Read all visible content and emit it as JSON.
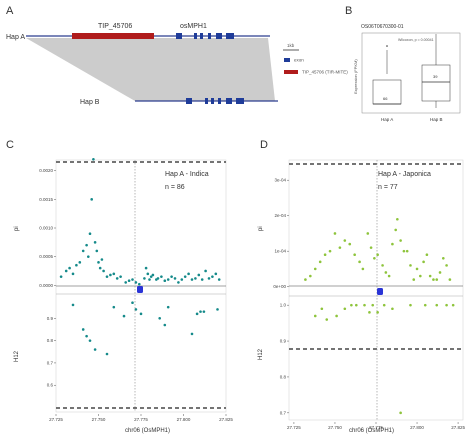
{
  "panels": {
    "a": {
      "letter": "A",
      "hap_a_label": "Hap A",
      "hap_b_label": "Hap B",
      "tip_label": "TIP_45706",
      "gene_label": "osMPH1",
      "legend_title": "1kb",
      "legend_exon": "exon",
      "legend_tip": "TIP_45706\n(TIR-MITE)",
      "colors": {
        "tip": "#b01c1c",
        "exon": "#1f3c99",
        "line": "#2c3e8f",
        "shade": "#cccccc"
      }
    },
    "b": {
      "letter": "B",
      "title": "OS06T0670300-01",
      "ylabel": "Expression (FPKM)",
      "test_label": "Wilcoxon, p = 0.00041",
      "categories": [
        "Hap A",
        "Hap B"
      ],
      "counts": [
        "66",
        "39"
      ]
    },
    "c": {
      "letter": "C",
      "group_label": "Hap A - Indica",
      "n_label": "n = 86",
      "color": "#158a8a"
    },
    "d": {
      "letter": "D",
      "group_label": "Hap A - Japonica",
      "n_label": "n = 77",
      "color": "#8ec43c"
    }
  },
  "chart_data": [
    {
      "type": "scatter",
      "panel": "C",
      "title": "",
      "xlabel": "chr06 (OsMPH1)",
      "x_ticks": [
        "27.725",
        "27.750",
        "27.775",
        "27.800",
        "27.825"
      ],
      "xlim": [
        27.725,
        27.825
      ],
      "pi": {
        "ylabel": "pi",
        "y_ticks": [
          "0.0000",
          "0.0005",
          "0.0010",
          "0.0015",
          "0.0020"
        ],
        "ylim": [
          -0.0001,
          0.0021
        ],
        "x": [
          27.728,
          27.731,
          27.733,
          27.735,
          27.737,
          27.739,
          27.741,
          27.743,
          27.744,
          27.745,
          27.746,
          27.747,
          27.748,
          27.749,
          27.75,
          27.751,
          27.752,
          27.753,
          27.755,
          27.757,
          27.759,
          27.761,
          27.763,
          27.766,
          27.768,
          27.77,
          27.772,
          27.774,
          27.777,
          27.778,
          27.779,
          27.78,
          27.781,
          27.782,
          27.784,
          27.785,
          27.787,
          27.789,
          27.791,
          27.793,
          27.795,
          27.797,
          27.799,
          27.801,
          27.803,
          27.805,
          27.807,
          27.809,
          27.811,
          27.813,
          27.815,
          27.817,
          27.819,
          27.821
        ],
        "y": [
          0.00015,
          0.00025,
          0.0003,
          0.0002,
          0.00035,
          0.0004,
          0.0006,
          0.0007,
          0.0005,
          0.0009,
          0.0015,
          0.0022,
          0.00075,
          0.0006,
          0.0004,
          0.0003,
          0.00045,
          0.00025,
          0.00015,
          0.00018,
          0.0002,
          0.00012,
          0.00015,
          5e-05,
          8e-05,
          0.0001,
          5e-05,
          2e-05,
          0.00012,
          0.0003,
          0.0002,
          0.0001,
          0.00015,
          0.00018,
          0.0001,
          0.00012,
          0.00015,
          8e-05,
          0.0001,
          0.00015,
          0.00012,
          5e-05,
          0.0001,
          0.00015,
          0.0002,
          0.0001,
          0.00012,
          0.00018,
          0.0001,
          0.00025,
          0.00012,
          0.00015,
          0.0002,
          0.0001
        ]
      },
      "h12": {
        "ylabel": "H12",
        "y_ticks": [
          "0.6",
          "0.7",
          "0.8",
          "0.9"
        ],
        "ylim": [
          0.48,
          1.0
        ],
        "x": [
          27.735,
          27.741,
          27.743,
          27.745,
          27.748,
          27.755,
          27.759,
          27.765,
          27.77,
          27.772,
          27.775,
          27.786,
          27.789,
          27.791,
          27.805,
          27.808,
          27.81,
          27.812,
          27.82
        ],
        "y": [
          0.96,
          0.85,
          0.82,
          0.8,
          0.76,
          0.74,
          0.95,
          0.91,
          0.97,
          0.94,
          0.92,
          0.9,
          0.87,
          0.95,
          0.83,
          0.92,
          0.93,
          0.93,
          0.94
        ]
      }
    },
    {
      "type": "scatter",
      "panel": "D",
      "title": "",
      "xlabel": "chr06 (OsMPH1)",
      "x_ticks": [
        "27.725",
        "27.750",
        "27.775",
        "27.800",
        "27.825"
      ],
      "xlim": [
        27.722,
        27.828
      ],
      "pi": {
        "ylabel": "pi",
        "y_ticks": [
          "0e+00",
          "1e-04",
          "2e-04",
          "3e-04"
        ],
        "ylim": [
          -1.5e-05,
          0.00034
        ],
        "x": [
          27.732,
          27.735,
          27.738,
          27.741,
          27.744,
          27.747,
          27.75,
          27.753,
          27.756,
          27.759,
          27.762,
          27.765,
          27.767,
          27.77,
          27.772,
          27.774,
          27.776,
          27.779,
          27.781,
          27.783,
          27.785,
          27.787,
          27.788,
          27.79,
          27.792,
          27.794,
          27.796,
          27.798,
          27.8,
          27.802,
          27.804,
          27.806,
          27.808,
          27.81,
          27.812,
          27.814,
          27.816,
          27.818,
          27.82
        ],
        "y": [
          2e-05,
          3e-05,
          5e-05,
          7e-05,
          9e-05,
          0.0001,
          0.00015,
          0.00011,
          0.00013,
          0.00012,
          9e-05,
          7e-05,
          5e-05,
          0.00015,
          0.00011,
          8e-05,
          9e-05,
          6e-05,
          4e-05,
          3e-05,
          0.00012,
          0.00016,
          0.00019,
          0.00013,
          0.0001,
          0.0001,
          6e-05,
          2e-05,
          5e-05,
          3e-05,
          7e-05,
          9e-05,
          3e-05,
          2e-05,
          2e-05,
          4e-05,
          8e-05,
          6e-05,
          2e-05
        ]
      },
      "h12": {
        "ylabel": "H12",
        "y_ticks": [
          "0.7",
          "0.8",
          "0.9",
          "1.0"
        ],
        "ylim": [
          0.68,
          1.02
        ],
        "x": [
          27.738,
          27.742,
          27.745,
          27.751,
          27.756,
          27.76,
          27.763,
          27.768,
          27.771,
          27.773,
          27.776,
          27.78,
          27.785,
          27.79,
          27.796,
          27.805,
          27.812,
          27.818,
          27.822
        ],
        "y": [
          0.97,
          0.99,
          0.96,
          0.97,
          0.99,
          1.0,
          1.0,
          1.0,
          0.98,
          1.0,
          0.98,
          1.0,
          0.99,
          0.7,
          1.0,
          1.0,
          1.0,
          1.0,
          1.0
        ]
      }
    }
  ]
}
